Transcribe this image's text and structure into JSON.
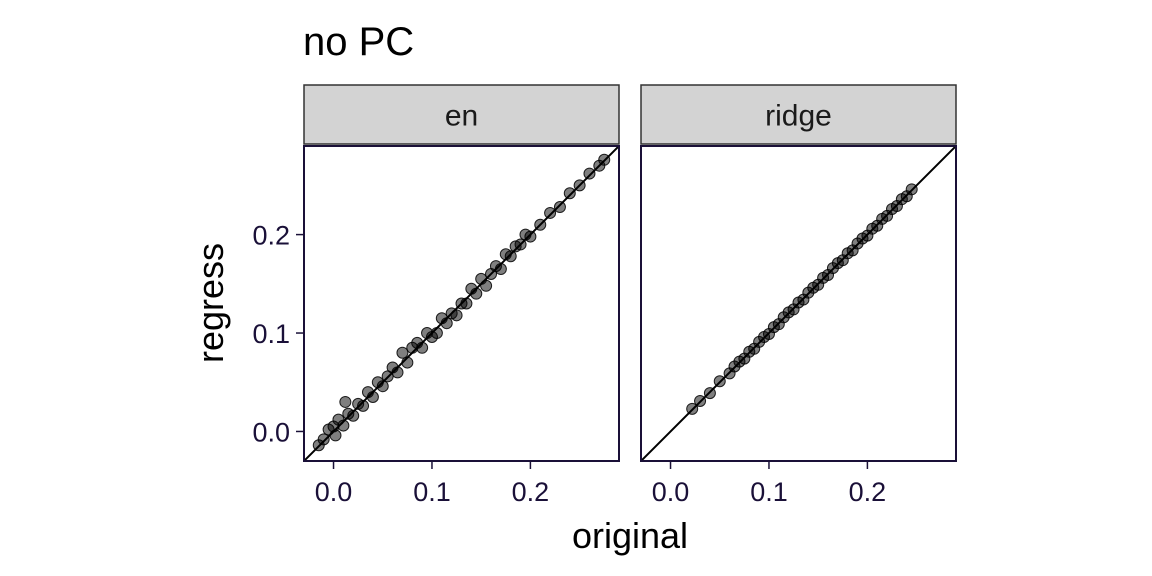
{
  "chart_data": {
    "type": "scatter",
    "title": "no PC",
    "xlabel": "original",
    "ylabel": "regress",
    "xlim": [
      -0.03,
      0.29
    ],
    "ylim": [
      -0.03,
      0.29
    ],
    "x_ticks": [
      0.0,
      0.1,
      0.2
    ],
    "y_ticks": [
      0.0,
      0.1,
      0.2
    ],
    "x_tick_labels": [
      "0.0",
      "0.1",
      "0.2"
    ],
    "y_tick_labels": [
      "0.0",
      "0.1",
      "0.2"
    ],
    "reference_line": "y = x",
    "grid": false,
    "colors": {
      "points": "#000000",
      "axis_text": "#1a1038",
      "panel_border": "#1a1038",
      "strip_fill": "#d3d3d3"
    },
    "panels": [
      {
        "strip": "en",
        "x": [
          -0.015,
          -0.01,
          -0.005,
          0.0,
          0.002,
          0.005,
          0.01,
          0.012,
          0.015,
          0.02,
          0.025,
          0.03,
          0.035,
          0.04,
          0.045,
          0.05,
          0.055,
          0.06,
          0.065,
          0.07,
          0.075,
          0.08,
          0.085,
          0.09,
          0.095,
          0.1,
          0.105,
          0.11,
          0.115,
          0.12,
          0.125,
          0.13,
          0.135,
          0.14,
          0.145,
          0.15,
          0.155,
          0.16,
          0.165,
          0.17,
          0.175,
          0.18,
          0.185,
          0.19,
          0.195,
          0.2,
          0.21,
          0.22,
          0.23,
          0.24,
          0.25,
          0.26,
          0.27,
          0.275
        ],
        "y": [
          -0.014,
          -0.008,
          0.002,
          0.005,
          -0.004,
          0.012,
          0.006,
          0.03,
          0.018,
          0.016,
          0.028,
          0.026,
          0.04,
          0.035,
          0.05,
          0.046,
          0.056,
          0.065,
          0.06,
          0.08,
          0.07,
          0.085,
          0.09,
          0.085,
          0.1,
          0.096,
          0.1,
          0.115,
          0.11,
          0.12,
          0.118,
          0.13,
          0.13,
          0.145,
          0.14,
          0.155,
          0.148,
          0.16,
          0.168,
          0.165,
          0.18,
          0.178,
          0.188,
          0.19,
          0.2,
          0.198,
          0.21,
          0.222,
          0.228,
          0.242,
          0.25,
          0.262,
          0.27,
          0.276
        ]
      },
      {
        "strip": "ridge",
        "x": [
          0.022,
          0.03,
          0.04,
          0.05,
          0.06,
          0.065,
          0.07,
          0.075,
          0.08,
          0.085,
          0.09,
          0.095,
          0.1,
          0.105,
          0.11,
          0.115,
          0.12,
          0.125,
          0.13,
          0.135,
          0.14,
          0.145,
          0.15,
          0.155,
          0.16,
          0.165,
          0.17,
          0.175,
          0.18,
          0.185,
          0.19,
          0.195,
          0.2,
          0.205,
          0.21,
          0.215,
          0.22,
          0.225,
          0.23,
          0.235,
          0.24,
          0.245
        ],
        "y": [
          0.023,
          0.031,
          0.039,
          0.051,
          0.059,
          0.066,
          0.071,
          0.074,
          0.081,
          0.084,
          0.091,
          0.096,
          0.099,
          0.106,
          0.109,
          0.116,
          0.121,
          0.124,
          0.131,
          0.134,
          0.141,
          0.146,
          0.149,
          0.156,
          0.159,
          0.166,
          0.171,
          0.174,
          0.181,
          0.184,
          0.191,
          0.196,
          0.199,
          0.206,
          0.209,
          0.216,
          0.219,
          0.226,
          0.229,
          0.236,
          0.239,
          0.246
        ]
      }
    ]
  }
}
